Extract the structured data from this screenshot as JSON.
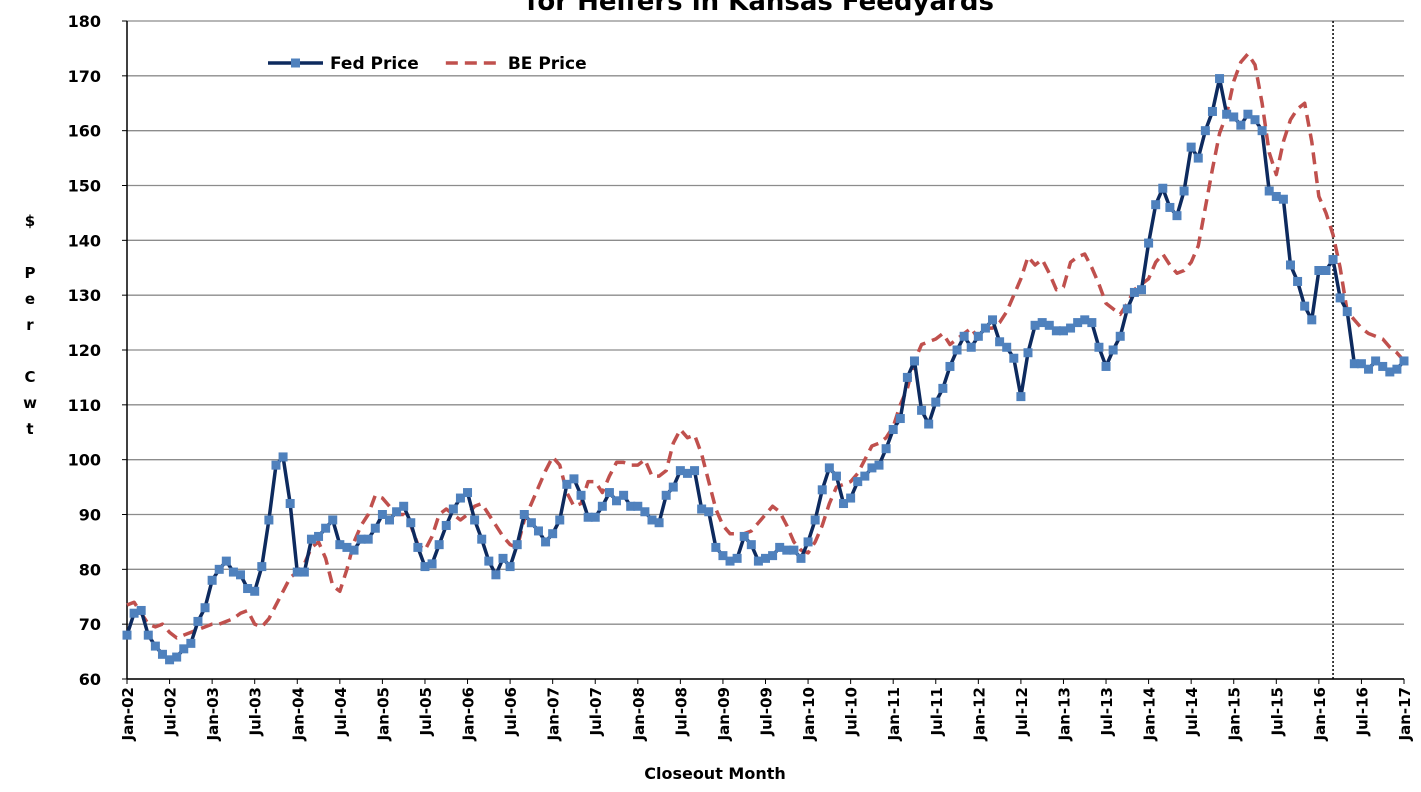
{
  "chart_data": {
    "type": "line",
    "title": "for Heifers in Kansas Feedyards",
    "x_label": "Closeout Month",
    "y_label": "$ Per Cwt",
    "categories": [
      "Jan-02",
      null,
      null,
      null,
      null,
      null,
      "Jul-02",
      null,
      null,
      null,
      null,
      null,
      "Jan-03",
      null,
      null,
      null,
      null,
      null,
      "Jul-03",
      null,
      null,
      null,
      null,
      null,
      "Jan-04",
      null,
      null,
      null,
      null,
      null,
      "Jul-04",
      null,
      null,
      null,
      null,
      null,
      "Jan-05",
      null,
      null,
      null,
      null,
      null,
      "Jul-05",
      null,
      null,
      null,
      null,
      null,
      "Jan-06",
      null,
      null,
      null,
      null,
      null,
      "Jul-06",
      null,
      null,
      null,
      null,
      null,
      "Jan-07",
      null,
      null,
      null,
      null,
      null,
      "Jul-07",
      null,
      null,
      null,
      null,
      null,
      "Jan-08",
      null,
      null,
      null,
      null,
      null,
      "Jul-08",
      null,
      null,
      null,
      null,
      null,
      "Jan-09",
      null,
      null,
      null,
      null,
      null,
      "Jul-09",
      null,
      null,
      null,
      null,
      null,
      "Jan-10",
      null,
      null,
      null,
      null,
      null,
      "Jul-10",
      null,
      null,
      null,
      null,
      null,
      "Jan-11",
      null,
      null,
      null,
      null,
      null,
      "Jul-11",
      null,
      null,
      null,
      null,
      null,
      "Jan-12",
      null,
      null,
      null,
      null,
      null,
      "Jul-12",
      null,
      null,
      null,
      null,
      null,
      "Jan-13",
      null,
      null,
      null,
      null,
      null,
      "Jul-13",
      null,
      null,
      null,
      null,
      null,
      "Jan-14",
      null,
      null,
      null,
      null,
      null,
      "Jul-14",
      null,
      null,
      null,
      null,
      null,
      "Jan-15",
      null,
      null,
      null,
      null,
      null,
      "Jul-15",
      null,
      null,
      null,
      null,
      null,
      "Jan-16",
      null,
      null,
      null,
      null,
      null,
      "Jul-16",
      null,
      null,
      null,
      null,
      null,
      "Jan-17"
    ],
    "series": [
      {
        "name": "Fed Price",
        "color": "#0d2a5e",
        "marker_color": "#4f81bd",
        "dashed": false,
        "markers": true,
        "values": [
          68,
          72,
          72.5,
          68,
          66,
          64.5,
          63.5,
          64,
          65.5,
          66.5,
          70.5,
          73,
          78,
          80,
          81.5,
          79.5,
          79,
          76.5,
          76,
          80.5,
          89,
          99,
          100.5,
          92,
          79.5,
          79.5,
          85.5,
          86,
          87.5,
          89,
          84.5,
          84,
          83.5,
          85.5,
          85.5,
          87.5,
          90,
          89,
          90.5,
          91.5,
          88.5,
          84,
          80.5,
          81,
          84.5,
          88,
          91,
          93,
          94,
          89,
          85.5,
          81.5,
          79,
          82,
          80.5,
          84.5,
          90,
          88.5,
          87,
          85,
          86.5,
          89,
          95.5,
          96.5,
          93.5,
          89.5,
          89.5,
          91.5,
          94,
          92.5,
          93.5,
          91.5,
          91.5,
          90.5,
          89,
          88.5,
          93.5,
          95,
          98,
          97.5,
          98,
          91,
          90.5,
          84,
          82.5,
          81.5,
          82,
          86,
          84.5,
          81.5,
          82,
          82.5,
          84,
          83.5,
          83.5,
          82,
          85,
          89,
          94.5,
          98.5,
          97,
          92,
          93,
          96,
          97,
          98.5,
          99,
          102,
          105.5,
          107.5,
          115,
          118,
          109,
          106.5,
          110.5,
          113,
          117,
          120,
          122.5,
          120.5,
          122.5,
          124,
          125.5,
          121.5,
          120.5,
          118.5,
          111.5,
          119.5,
          124.5,
          125,
          124.5,
          123.5,
          123.5,
          124,
          125,
          125.5,
          125,
          120.5,
          117,
          120,
          122.5,
          127.5,
          130.5,
          131,
          139.5,
          146.5,
          149.5,
          146,
          144.5,
          149,
          157,
          155,
          160,
          163.5,
          169.5,
          163,
          162.5,
          161,
          163,
          162,
          160,
          149,
          148,
          147.5,
          135.5,
          132.5,
          128,
          125.5,
          134.5,
          134.5,
          136.5,
          129.5,
          127,
          117.5,
          117.5,
          116.5,
          118,
          117,
          116,
          116.5,
          118
        ]
      },
      {
        "name": "BE Price",
        "color": "#c0504d",
        "dashed": true,
        "markers": false,
        "values": [
          73.5,
          74,
          72,
          70,
          69.5,
          70,
          68.5,
          67.5,
          68,
          68.5,
          69,
          69.5,
          70,
          70,
          70.5,
          71,
          72,
          72.5,
          70,
          69.5,
          71,
          73.5,
          76,
          78.5,
          79.5,
          81,
          84,
          85,
          82,
          77,
          76,
          80,
          85,
          88,
          90,
          93.5,
          93,
          91.5,
          90,
          90,
          88,
          84.5,
          83.5,
          86,
          90,
          91,
          90,
          89,
          90,
          91.5,
          92,
          90,
          88,
          86,
          84.5,
          84,
          89,
          92,
          95,
          98,
          100.5,
          99,
          94,
          91.5,
          92,
          96,
          96,
          94,
          97,
          99.5,
          99.5,
          99,
          99,
          100,
          97,
          97,
          98,
          103,
          105.5,
          104,
          104.5,
          101,
          96,
          91,
          88,
          86.5,
          86.5,
          86.5,
          87,
          88.5,
          90,
          91.5,
          90.5,
          88,
          85,
          83.5,
          83,
          85,
          88,
          92,
          95,
          95.5,
          96,
          97.5,
          100,
          102.5,
          103,
          104,
          106,
          110,
          113,
          118,
          121,
          121.5,
          122,
          123,
          121,
          122,
          123,
          124,
          122,
          124,
          124,
          125,
          127,
          130,
          133,
          137,
          135.5,
          136.5,
          134,
          131,
          131.5,
          136,
          137,
          137.5,
          135,
          132,
          128.5,
          127.5,
          126.5,
          128.5,
          131,
          132,
          133,
          136,
          137.5,
          135.5,
          134,
          134.5,
          136,
          139,
          146,
          153,
          159.5,
          163,
          169,
          172.5,
          174,
          172,
          165,
          156,
          152,
          158,
          162,
          164,
          165,
          158,
          148,
          145,
          141,
          135,
          127,
          125.5,
          124,
          123,
          122.5,
          122,
          120.5,
          119.5,
          118
        ]
      }
    ],
    "ylim": [
      60,
      180
    ],
    "yticks": [
      60,
      70,
      80,
      90,
      100,
      110,
      120,
      130,
      140,
      150,
      160,
      170,
      180
    ],
    "grid": true,
    "legend": "upper left",
    "reference_line_index": 170
  }
}
